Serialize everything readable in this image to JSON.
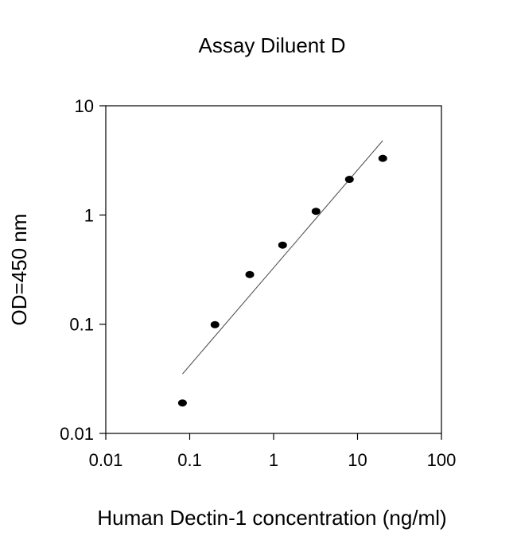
{
  "chart_data": {
    "type": "scatter",
    "title": "Assay Diluent D",
    "xlabel": "Human Dectin-1 concentration (ng/ml)",
    "ylabel": "OD=450 nm",
    "x_scale": "log",
    "y_scale": "log",
    "xlim": [
      0.01,
      100
    ],
    "ylim": [
      0.01,
      10
    ],
    "x_ticks": [
      0.01,
      0.1,
      1,
      10,
      100
    ],
    "x_tick_labels": [
      "0.01",
      "0.1",
      "1",
      "10",
      "100"
    ],
    "y_ticks": [
      0.01,
      0.1,
      1,
      10
    ],
    "y_tick_labels": [
      "0.01",
      "0.1",
      "1",
      "10"
    ],
    "grid": false,
    "legend": "none",
    "series": [
      {
        "x": [
          0.082,
          0.2,
          0.52,
          1.28,
          3.2,
          8.0,
          20.0
        ],
        "y": [
          0.019,
          0.099,
          0.285,
          0.53,
          1.08,
          2.12,
          3.3
        ],
        "marker": "filled-circle",
        "color": "#000000"
      }
    ],
    "fit_line": {
      "type": "linear-in-log-log",
      "x": [
        0.082,
        20.0
      ],
      "y": [
        0.035,
        4.8
      ],
      "color": "#555555"
    }
  }
}
